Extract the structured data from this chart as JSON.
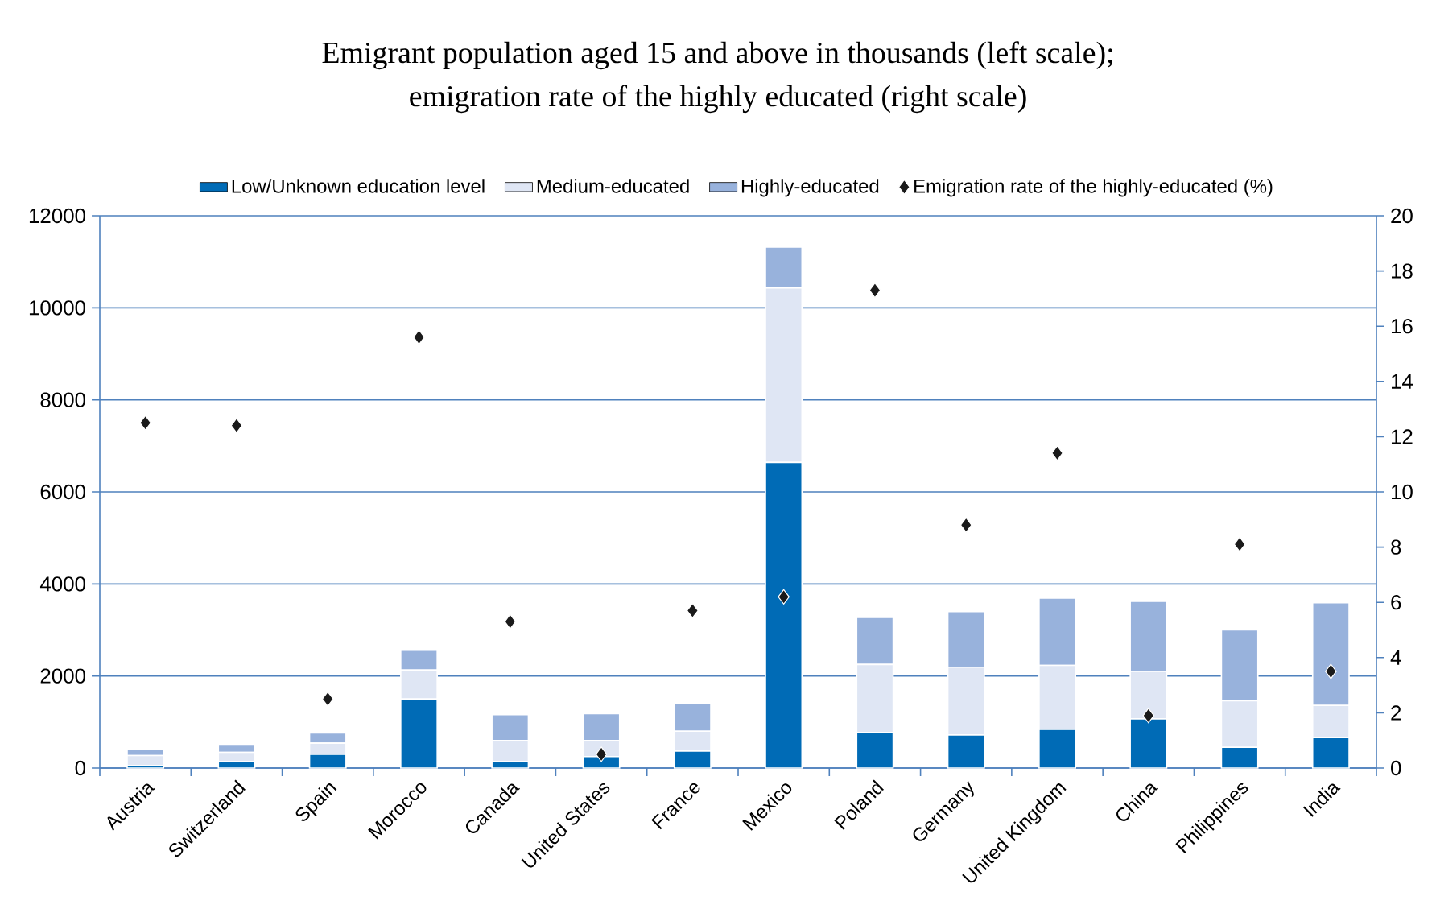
{
  "chart_data": {
    "type": "bar",
    "title": "Emigrant population aged 15 and above in thousands (left scale);",
    "subtitle": "emigration rate of the highly educated (right scale)",
    "categories": [
      "Austria",
      "Switzerland",
      "Spain",
      "Morocco",
      "Canada",
      "United States",
      "France",
      "Mexico",
      "Poland",
      "Germany",
      "United Kingdom",
      "China",
      "Philippines",
      "India"
    ],
    "stacked": true,
    "series": [
      {
        "name": "Low/Unknown education level",
        "color": "#006bb6",
        "values": [
          50,
          140,
          300,
          1500,
          140,
          250,
          370,
          6640,
          770,
          720,
          840,
          1070,
          450,
          660
        ]
      },
      {
        "name": "Medium-educated",
        "color": "#dfe6f4",
        "values": [
          220,
          200,
          240,
          630,
          460,
          350,
          430,
          3790,
          1480,
          1470,
          1390,
          1030,
          1010,
          700
        ]
      },
      {
        "name": "Highly-educated",
        "color": "#98b2dc",
        "values": [
          130,
          160,
          220,
          430,
          560,
          580,
          600,
          890,
          1020,
          1210,
          1460,
          1520,
          1540,
          2230
        ]
      },
      {
        "name": "Emigration rate of the highly-educated (%)",
        "type": "scatter",
        "axis": "y2",
        "marker": "diamond",
        "color": "#1a1a1a",
        "values": [
          12.5,
          12.4,
          2.5,
          15.6,
          5.3,
          0.5,
          5.7,
          6.2,
          17.3,
          8.8,
          11.4,
          1.9,
          8.1,
          3.5
        ]
      }
    ],
    "ylim": [
      0,
      12000
    ],
    "yticks": [
      0,
      2000,
      4000,
      6000,
      8000,
      10000,
      12000
    ],
    "y2lim": [
      0,
      20
    ],
    "y2ticks": [
      0,
      2,
      4,
      6,
      8,
      10,
      12,
      14,
      16,
      18,
      20
    ],
    "grid": "y",
    "legend": "top"
  }
}
